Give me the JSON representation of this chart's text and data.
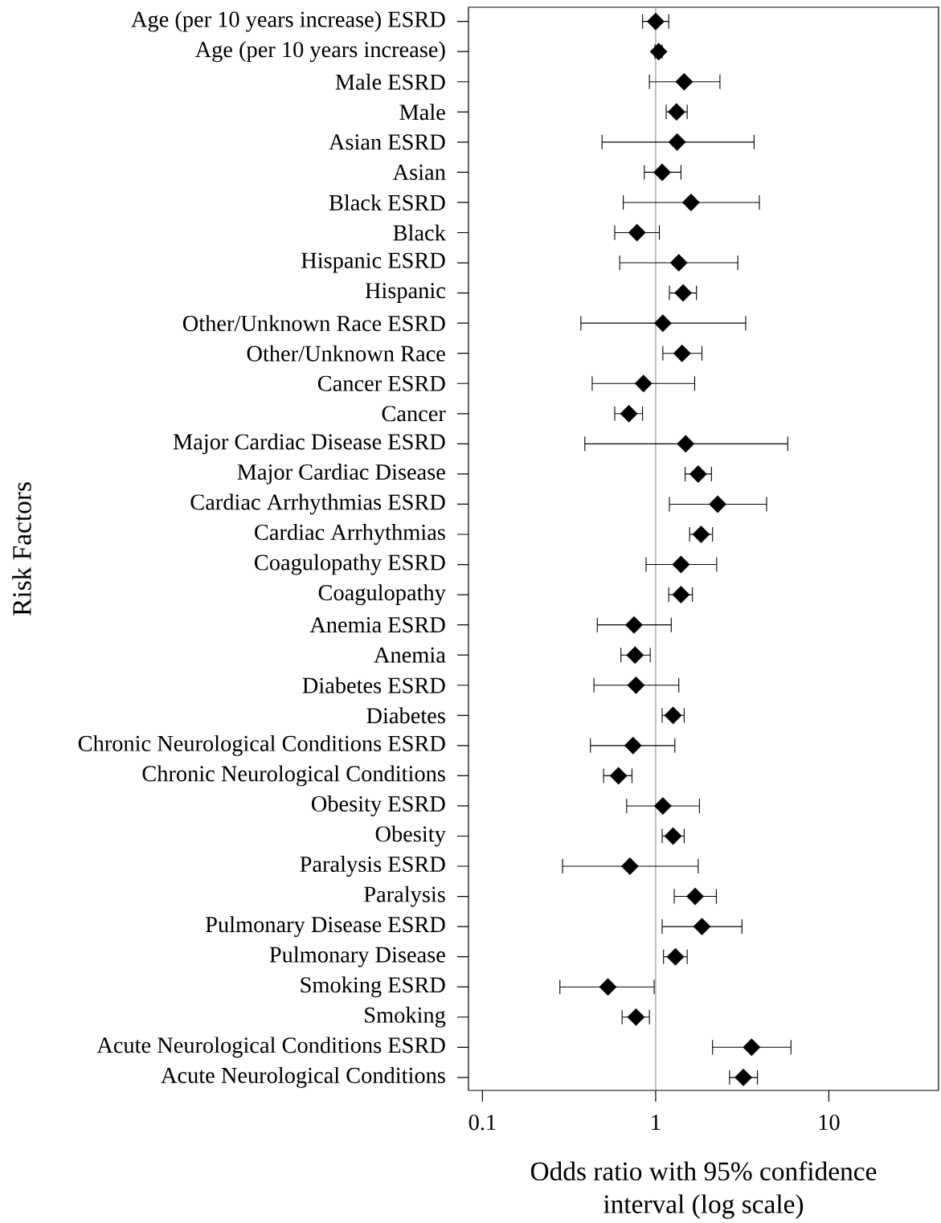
{
  "chart_data": {
    "type": "scatter",
    "orientation": "horizontal",
    "xlabel": "Odds ratio with 95% confidence interval (log scale)",
    "ylabel": "Risk Factors",
    "categories": [
      "Age (per 10 years increase) ESRD",
      "Age (per 10 years increase)",
      "Male ESRD",
      "Male",
      "Asian ESRD",
      "Asian",
      "Black ESRD",
      "Black",
      "Hispanic ESRD",
      "Hispanic",
      "Other/Unknown Race ESRD",
      "Other/Unknown Race",
      "Cancer ESRD",
      "Cancer",
      "Major Cardiac Disease ESRD",
      "Major Cardiac Disease",
      "Cardiac Arrhythmias ESRD",
      "Cardiac Arrhythmias",
      "Coagulopathy ESRD",
      "Coagulopathy",
      "Anemia ESRD",
      "Anemia",
      "Diabetes ESRD",
      "Diabetes",
      "Chronic Neurological Conditions ESRD",
      "Chronic Neurological Conditions",
      "Obesity ESRD",
      "Obesity",
      "Paralysis ESRD",
      "Paralysis",
      "Pulmonary Disease ESRD",
      "Pulmonary Disease",
      "Smoking ESRD",
      "Smoking",
      "Acute Neurological Conditions ESRD",
      "Acute Neurological Conditions"
    ],
    "values": [
      1.0,
      1.04,
      1.46,
      1.32,
      1.33,
      1.09,
      1.6,
      0.78,
      1.36,
      1.44,
      1.1,
      1.42,
      0.85,
      0.7,
      1.49,
      1.76,
      2.28,
      1.83,
      1.4,
      1.4,
      0.75,
      0.76,
      0.77,
      1.26,
      0.74,
      0.61,
      1.1,
      1.26,
      0.71,
      1.69,
      1.85,
      1.3,
      0.53,
      0.77,
      3.58,
      3.21
    ],
    "errors": [
      [
        0.84,
        1.19
      ],
      [
        0.99,
        1.09
      ],
      [
        0.92,
        2.35
      ],
      [
        1.15,
        1.52
      ],
      [
        0.49,
        3.7
      ],
      [
        0.86,
        1.4
      ],
      [
        0.65,
        3.97
      ],
      [
        0.58,
        1.05
      ],
      [
        0.62,
        2.98
      ],
      [
        1.2,
        1.72
      ],
      [
        0.37,
        3.31
      ],
      [
        1.1,
        1.85
      ],
      [
        0.43,
        1.68
      ],
      [
        0.58,
        0.84
      ],
      [
        0.39,
        5.79
      ],
      [
        1.48,
        2.1
      ],
      [
        1.2,
        4.37
      ],
      [
        1.57,
        2.13
      ],
      [
        0.88,
        2.25
      ],
      [
        1.19,
        1.63
      ],
      [
        0.46,
        1.23
      ],
      [
        0.63,
        0.93
      ],
      [
        0.44,
        1.36
      ],
      [
        1.09,
        1.46
      ],
      [
        0.42,
        1.29
      ],
      [
        0.5,
        0.73
      ],
      [
        0.68,
        1.79
      ],
      [
        1.09,
        1.46
      ],
      [
        0.29,
        1.76
      ],
      [
        1.28,
        2.24
      ],
      [
        1.09,
        3.15
      ],
      [
        1.11,
        1.52
      ],
      [
        0.28,
        0.98
      ],
      [
        0.64,
        0.92
      ],
      [
        2.13,
        6.04
      ],
      [
        2.67,
        3.87
      ]
    ],
    "color": "#000000",
    "marker": "diamond",
    "log": "x",
    "xlim": [
      0.083,
      43
    ],
    "xticks": [
      0.1,
      1,
      10
    ],
    "ref_lines": [
      {
        "axis": "x",
        "value": 1,
        "color": "#a0a0a0"
      }
    ]
  }
}
